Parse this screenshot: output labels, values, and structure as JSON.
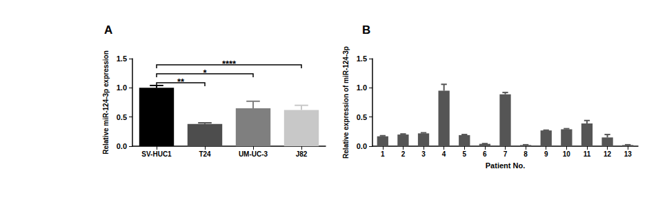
{
  "chart_data": [
    {
      "type": "bar",
      "title": "A",
      "categories": [
        "SV-HUC1",
        "T24",
        "UM-UC-3",
        "J82"
      ],
      "values": [
        1.0,
        0.38,
        0.65,
        0.62
      ],
      "errors": [
        0.04,
        0.02,
        0.12,
        0.08
      ],
      "colors": [
        "#000000",
        "#4d4d4d",
        "#7f7f7f",
        "#c8c8c8"
      ],
      "y_label": "Relative miR-124-3p expression",
      "ylim": [
        0,
        1.5
      ],
      "yticks": [
        {
          "value": 0,
          "label": "0.0"
        },
        {
          "value": 0.5,
          "label": "0.5"
        },
        {
          "value": 1.0,
          "label": "1.0"
        },
        {
          "value": 1.5,
          "label": "1.5"
        }
      ],
      "annotations": [
        {
          "from": "SV-HUC1",
          "to": "T24",
          "label": "**"
        },
        {
          "from": "SV-HUC1",
          "to": "UM-UC-3",
          "label": "*"
        },
        {
          "from": "SV-HUC1",
          "to": "J82",
          "label": "****"
        }
      ],
      "grid": false
    },
    {
      "type": "bar",
      "title": "B",
      "categories": [
        "1",
        "2",
        "3",
        "4",
        "5",
        "6",
        "7",
        "8",
        "9",
        "10",
        "11",
        "12",
        "13"
      ],
      "values": [
        0.17,
        0.2,
        0.22,
        0.95,
        0.19,
        0.04,
        0.89,
        0.02,
        0.27,
        0.29,
        0.39,
        0.15,
        0.02
      ],
      "errors": [
        0.01,
        0.01,
        0.01,
        0.11,
        0.01,
        0.005,
        0.03,
        0.005,
        0.005,
        0.01,
        0.05,
        0.05,
        0.005
      ],
      "color": "#555555",
      "x_label": "Patient No.",
      "y_label": "Relative expression of miR-124-3p",
      "ylim": [
        0,
        1.5
      ],
      "yticks": [
        {
          "value": 0,
          "label": "0.0"
        },
        {
          "value": 0.5,
          "label": "0.5"
        },
        {
          "value": 1.0,
          "label": "1.0"
        },
        {
          "value": 1.5,
          "label": "1.5"
        }
      ],
      "grid": false
    }
  ]
}
